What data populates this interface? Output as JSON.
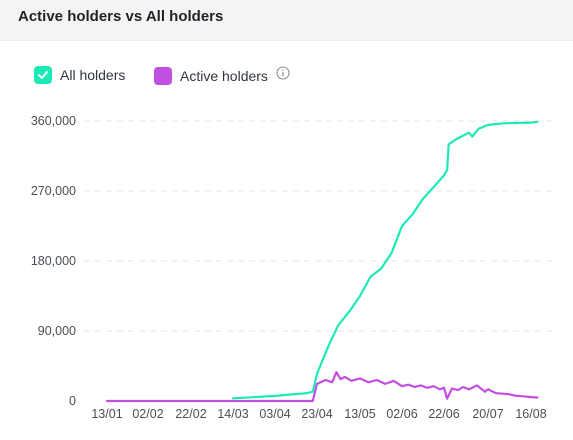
{
  "header": {
    "title": "Active holders vs All holders"
  },
  "legend": {
    "items": [
      {
        "label": "All holders",
        "color": "#1de9b6",
        "checked": true,
        "icon": "check-icon"
      },
      {
        "label": "Active holders",
        "color": "#c24fe0",
        "checked": true,
        "info_icon": "info-icon"
      }
    ]
  },
  "chart_data": {
    "type": "line",
    "x_tick_labels": [
      "13/01",
      "02/02",
      "22/02",
      "14/03",
      "03/04",
      "23/04",
      "13/05",
      "02/06",
      "22/06",
      "20/07",
      "16/08"
    ],
    "y_tick_labels": [
      "0",
      "90,000",
      "180,000",
      "270,000",
      "360,000"
    ],
    "ylim": [
      0,
      360000
    ],
    "grid": true,
    "legend_position": "top-left",
    "series": [
      {
        "name": "All holders",
        "color": "#1de9b6",
        "points": [
          [
            "14/03",
            3500
          ],
          [
            "03/04",
            6500
          ],
          [
            "18/04",
            10000
          ],
          [
            "21/04",
            12000
          ],
          [
            "23/04",
            35000
          ],
          [
            "26/04",
            55000
          ],
          [
            "29/04",
            75000
          ],
          [
            "03/05",
            98000
          ],
          [
            "08/05",
            115000
          ],
          [
            "13/05",
            135000
          ],
          [
            "18/05",
            160000
          ],
          [
            "23/05",
            170000
          ],
          [
            "28/05",
            190000
          ],
          [
            "02/06",
            225000
          ],
          [
            "07/06",
            240000
          ],
          [
            "12/06",
            260000
          ],
          [
            "17/06",
            275000
          ],
          [
            "22/06",
            290000
          ],
          [
            "24/06",
            297000
          ],
          [
            "25/06",
            330000
          ],
          [
            "01/07",
            338000
          ],
          [
            "08/07",
            345000
          ],
          [
            "10/07",
            340000
          ],
          [
            "14/07",
            350000
          ],
          [
            "20/07",
            355000
          ],
          [
            "30/07",
            357000
          ],
          [
            "16/08",
            358000
          ],
          [
            "20/08",
            359000
          ]
        ]
      },
      {
        "name": "Active holders",
        "color": "#c24fe0",
        "points": [
          [
            "13/01",
            0
          ],
          [
            "13/02",
            0
          ],
          [
            "14/03",
            0
          ],
          [
            "03/04",
            0
          ],
          [
            "21/04",
            0
          ],
          [
            "23/04",
            22000
          ],
          [
            "27/04",
            27000
          ],
          [
            "30/04",
            24000
          ],
          [
            "02/05",
            37000
          ],
          [
            "04/05",
            28000
          ],
          [
            "06/05",
            31000
          ],
          [
            "09/05",
            26000
          ],
          [
            "13/05",
            29000
          ],
          [
            "17/05",
            24000
          ],
          [
            "21/05",
            27000
          ],
          [
            "25/05",
            22000
          ],
          [
            "29/05",
            26000
          ],
          [
            "02/06",
            19000
          ],
          [
            "05/06",
            21000
          ],
          [
            "08/06",
            18000
          ],
          [
            "11/06",
            20000
          ],
          [
            "14/06",
            17000
          ],
          [
            "17/06",
            19000
          ],
          [
            "20/06",
            15000
          ],
          [
            "22/06",
            17000
          ],
          [
            "24/06",
            3000
          ],
          [
            "27/06",
            16000
          ],
          [
            "01/07",
            14000
          ],
          [
            "04/07",
            18000
          ],
          [
            "08/07",
            15000
          ],
          [
            "13/07",
            20000
          ],
          [
            "18/07",
            12000
          ],
          [
            "20/07",
            15000
          ],
          [
            "25/07",
            10000
          ],
          [
            "01/08",
            9000
          ],
          [
            "06/08",
            7000
          ],
          [
            "11/08",
            6000
          ],
          [
            "16/08",
            5000
          ],
          [
            "20/08",
            4500
          ]
        ]
      }
    ]
  }
}
